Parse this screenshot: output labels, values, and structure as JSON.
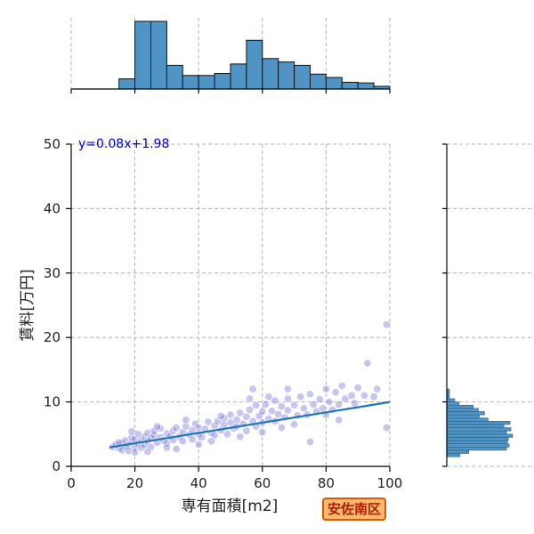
{
  "chart_data": {
    "type": "scatter",
    "xlabel": "専有面積[m2]",
    "ylabel": "賃料[万円]",
    "xlim": [
      0,
      100
    ],
    "ylim": [
      0,
      50
    ],
    "xticks": [
      "0",
      "20",
      "40",
      "60",
      "80",
      "100"
    ],
    "yticks": [
      "0",
      "10",
      "20",
      "30",
      "40",
      "50"
    ],
    "grid": true,
    "regression": {
      "label": "y=0.08x+1.98",
      "slope": 0.08,
      "intercept": 1.98,
      "x_range": [
        12,
        100
      ]
    },
    "scatter_points": [
      [
        13,
        3.0
      ],
      [
        14,
        3.4
      ],
      [
        15,
        2.8
      ],
      [
        16,
        3.6
      ],
      [
        16,
        2.5
      ],
      [
        17,
        3.1
      ],
      [
        17,
        4.0
      ],
      [
        18,
        3.3
      ],
      [
        18,
        2.4
      ],
      [
        19,
        3.8
      ],
      [
        19,
        4.5
      ],
      [
        20,
        3.0
      ],
      [
        20,
        4.2
      ],
      [
        21,
        3.5
      ],
      [
        21,
        5.0
      ],
      [
        22,
        2.9
      ],
      [
        22,
        4.0
      ],
      [
        23,
        4.6
      ],
      [
        23,
        3.3
      ],
      [
        24,
        5.2
      ],
      [
        24,
        3.9
      ],
      [
        25,
        4.4
      ],
      [
        25,
        3.0
      ],
      [
        26,
        4.8
      ],
      [
        26,
        5.5
      ],
      [
        27,
        3.7
      ],
      [
        28,
        4.5
      ],
      [
        28,
        5.9
      ],
      [
        29,
        4.0
      ],
      [
        30,
        5.1
      ],
      [
        30,
        3.6
      ],
      [
        31,
        4.7
      ],
      [
        32,
        5.5
      ],
      [
        32,
        4.1
      ],
      [
        33,
        6.0
      ],
      [
        34,
        4.6
      ],
      [
        35,
        5.3
      ],
      [
        35,
        3.9
      ],
      [
        36,
        6.2
      ],
      [
        37,
        4.9
      ],
      [
        38,
        5.6
      ],
      [
        38,
        4.2
      ],
      [
        39,
        6.6
      ],
      [
        40,
        5.0
      ],
      [
        40,
        6.0
      ],
      [
        41,
        4.5
      ],
      [
        42,
        5.8
      ],
      [
        43,
        6.9
      ],
      [
        44,
        5.2
      ],
      [
        45,
        6.3
      ],
      [
        45,
        4.8
      ],
      [
        46,
        7.0
      ],
      [
        47,
        5.6
      ],
      [
        48,
        6.5
      ],
      [
        48,
        7.5
      ],
      [
        49,
        5.0
      ],
      [
        50,
        6.8
      ],
      [
        50,
        8.0
      ],
      [
        51,
        5.9
      ],
      [
        52,
        7.2
      ],
      [
        52,
        6.2
      ],
      [
        53,
        8.3
      ],
      [
        54,
        6.6
      ],
      [
        55,
        7.7
      ],
      [
        55,
        5.5
      ],
      [
        56,
        8.8
      ],
      [
        57,
        7.0
      ],
      [
        58,
        6.2
      ],
      [
        58,
        9.5
      ],
      [
        59,
        7.8
      ],
      [
        60,
        8.5
      ],
      [
        60,
        6.8
      ],
      [
        61,
        9.6
      ],
      [
        62,
        7.4
      ],
      [
        63,
        8.6
      ],
      [
        64,
        10.2
      ],
      [
        64,
        7.0
      ],
      [
        65,
        8.1
      ],
      [
        66,
        9.3
      ],
      [
        67,
        7.6
      ],
      [
        68,
        10.5
      ],
      [
        68,
        8.7
      ],
      [
        70,
        9.5
      ],
      [
        71,
        7.9
      ],
      [
        72,
        10.8
      ],
      [
        73,
        9.0
      ],
      [
        74,
        8.0
      ],
      [
        75,
        11.2
      ],
      [
        76,
        9.6
      ],
      [
        77,
        8.5
      ],
      [
        78,
        10.4
      ],
      [
        79,
        9.0
      ],
      [
        80,
        12.0
      ],
      [
        81,
        10.0
      ],
      [
        82,
        8.8
      ],
      [
        83,
        11.5
      ],
      [
        84,
        9.6
      ],
      [
        85,
        12.5
      ],
      [
        86,
        10.5
      ],
      [
        88,
        11.0
      ],
      [
        89,
        9.8
      ],
      [
        90,
        12.2
      ],
      [
        92,
        11.0
      ],
      [
        93,
        16.0
      ],
      [
        95,
        10.8
      ],
      [
        96,
        12.0
      ],
      [
        99,
        22.0
      ],
      [
        99,
        6.0
      ],
      [
        62,
        10.8
      ],
      [
        56,
        10.5
      ],
      [
        47,
        7.8
      ],
      [
        36,
        7.2
      ],
      [
        27,
        6.2
      ],
      [
        19,
        5.4
      ],
      [
        33,
        2.7
      ],
      [
        44,
        3.9
      ],
      [
        53,
        4.6
      ],
      [
        66,
        6.0
      ],
      [
        75,
        3.8
      ],
      [
        84,
        7.2
      ],
      [
        24,
        2.3
      ],
      [
        30,
        2.9
      ],
      [
        40,
        3.4
      ],
      [
        60,
        5.3
      ],
      [
        70,
        6.5
      ],
      [
        80,
        8.0
      ],
      [
        57,
        12.0
      ],
      [
        68,
        12.0
      ],
      [
        20,
        2.2
      ],
      [
        15,
        3.7
      ]
    ],
    "x_histogram": {
      "bin_edges": [
        0,
        5,
        10,
        15,
        20,
        25,
        30,
        35,
        40,
        45,
        50,
        55,
        60,
        65,
        70,
        75,
        80,
        85,
        90,
        95,
        100
      ],
      "counts": [
        0,
        0,
        0,
        15,
        100,
        100,
        35,
        20,
        20,
        23,
        37,
        72,
        45,
        40,
        35,
        22,
        17,
        10,
        9,
        4
      ]
    },
    "y_histogram": {
      "bin_edges": [
        1,
        1.5,
        2,
        2.5,
        3,
        3.5,
        4,
        4.5,
        5,
        5.5,
        6,
        6.5,
        7,
        7.5,
        8,
        8.5,
        9,
        9.5,
        10,
        10.5,
        11,
        11.5,
        12
      ],
      "counts": [
        0,
        15,
        25,
        68,
        71,
        69,
        70,
        75,
        68,
        73,
        65,
        72,
        47,
        37,
        43,
        36,
        30,
        14,
        9,
        3,
        3,
        3
      ]
    }
  },
  "badge": {
    "label": "安佐南区"
  }
}
